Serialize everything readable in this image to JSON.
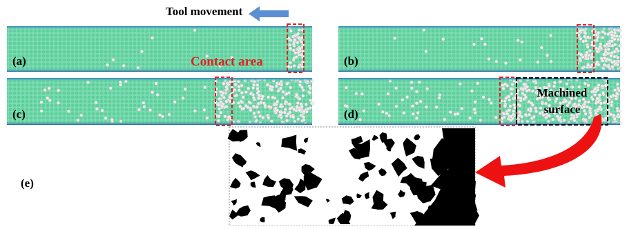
{
  "header": {
    "tool_movement": "Tool movement"
  },
  "panels": [
    {
      "label": "(a)"
    },
    {
      "label": "(b)"
    },
    {
      "label": "(c)"
    },
    {
      "label": "(d)"
    },
    {
      "label": "(e)"
    }
  ],
  "annotations": {
    "contact_area": "Contact area",
    "machined_surface": [
      "Machined",
      "surface"
    ]
  }
}
